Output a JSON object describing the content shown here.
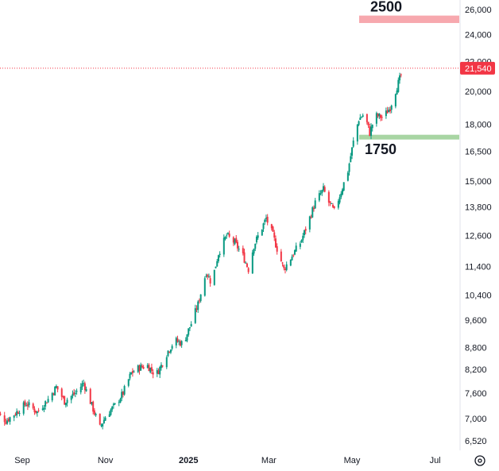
{
  "chart_data": {
    "type": "candlestick",
    "y_scale": "log",
    "ylim": [
      6300,
      26500
    ],
    "y_ticks": [
      "26,000",
      "24,000",
      "22,000",
      "20,000",
      "18,000",
      "16,500",
      "15,000",
      "13,800",
      "12,600",
      "11,400",
      "10,400",
      "9,600",
      "8,800",
      "8,200",
      "7,600",
      "7,000",
      "6,520"
    ],
    "x_ticks": [
      "Sep",
      "Nov",
      "2025",
      "Mar",
      "May",
      "Jul"
    ],
    "last_price": "21,540",
    "last_price_value": 21540,
    "colors": {
      "up": "#089981",
      "down": "#f23645",
      "zone_top": "#f7a8ae",
      "zone_bottom": "#a8d5a3"
    },
    "zones": [
      {
        "label": "2500",
        "low": 24900,
        "high": 25500,
        "color": "#f7a8ae"
      },
      {
        "label": "1750",
        "low": 17200,
        "high": 17400,
        "color": "#a8d5a3"
      }
    ],
    "anchors": [
      [
        "2024-08-12",
        7200
      ],
      [
        "2024-08-20",
        6950
      ],
      [
        "2024-08-28",
        7150
      ],
      [
        "2024-09-04",
        7350
      ],
      [
        "2024-09-12",
        7150
      ],
      [
        "2024-09-20",
        7450
      ],
      [
        "2024-09-26",
        7750
      ],
      [
        "2024-10-02",
        7400
      ],
      [
        "2024-10-10",
        7600
      ],
      [
        "2024-10-16",
        7850
      ],
      [
        "2024-10-22",
        7300
      ],
      [
        "2024-10-28",
        6800
      ],
      [
        "2024-11-02",
        7100
      ],
      [
        "2024-11-08",
        7300
      ],
      [
        "2024-11-14",
        7600
      ],
      [
        "2024-11-20",
        8100
      ],
      [
        "2024-11-26",
        8250
      ],
      [
        "2024-12-02",
        8300
      ],
      [
        "2024-12-08",
        8050
      ],
      [
        "2024-12-12",
        8300
      ],
      [
        "2024-12-17",
        8700
      ],
      [
        "2024-12-22",
        9000
      ],
      [
        "2024-12-28",
        8900
      ],
      [
        "2025-01-03",
        9500
      ],
      [
        "2025-01-08",
        10100
      ],
      [
        "2025-01-14",
        11200
      ],
      [
        "2025-01-18",
        10800
      ],
      [
        "2025-01-23",
        11900
      ],
      [
        "2025-01-29",
        12600
      ],
      [
        "2025-02-04",
        12300
      ],
      [
        "2025-02-10",
        11800
      ],
      [
        "2025-02-14",
        11300
      ],
      [
        "2025-02-18",
        12200
      ],
      [
        "2025-02-23",
        12800
      ],
      [
        "2025-02-27",
        13300
      ],
      [
        "2025-03-04",
        12600
      ],
      [
        "2025-03-08",
        11900
      ],
      [
        "2025-03-12",
        11300
      ],
      [
        "2025-03-18",
        11800
      ],
      [
        "2025-03-24",
        12300
      ],
      [
        "2025-03-29",
        13000
      ],
      [
        "2025-04-04",
        14000
      ],
      [
        "2025-04-10",
        14600
      ],
      [
        "2025-04-14",
        14000
      ],
      [
        "2025-04-18",
        13600
      ],
      [
        "2025-04-23",
        14500
      ],
      [
        "2025-04-28",
        15500
      ],
      [
        "2025-05-02",
        17000
      ],
      [
        "2025-05-06",
        18300
      ],
      [
        "2025-05-10",
        18600
      ],
      [
        "2025-05-14",
        17500
      ],
      [
        "2025-05-18",
        18500
      ],
      [
        "2025-05-24",
        18400
      ],
      [
        "2025-05-29",
        19000
      ],
      [
        "2025-06-03",
        20300
      ],
      [
        "2025-06-08",
        21540
      ]
    ]
  }
}
